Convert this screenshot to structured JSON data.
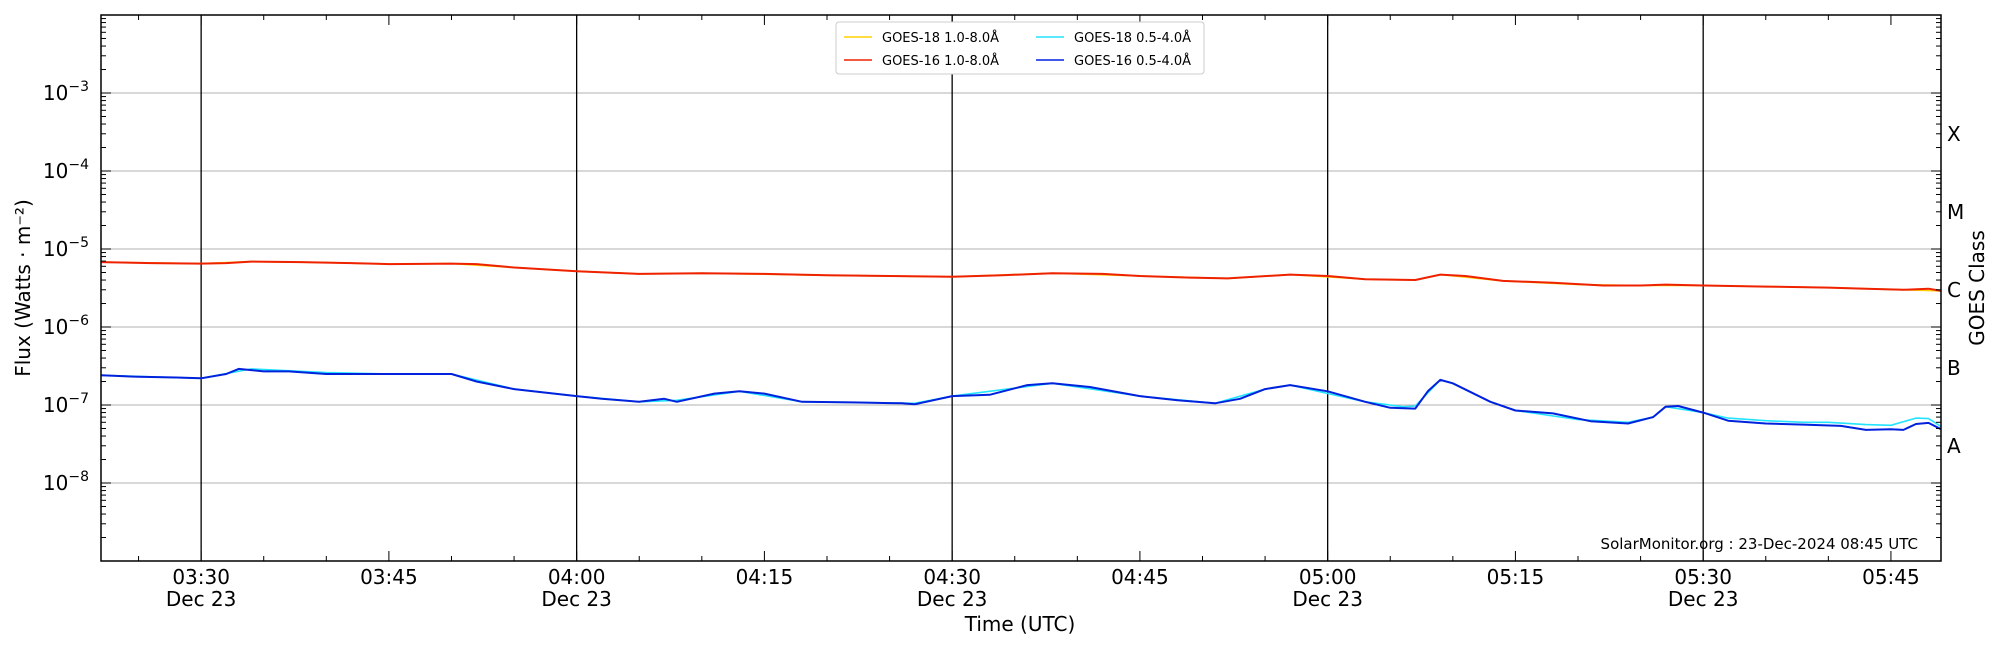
{
  "chart_data": {
    "type": "line",
    "xlabel": "Time (UTC)",
    "ylabel": "Flux (Watts · m⁻²)",
    "right_label": "GOES Class",
    "yscale": "log",
    "ylim": [
      1e-09,
      0.01
    ],
    "xlim": [
      "03:22",
      "05:49"
    ],
    "grid": "horizontal",
    "legend_position": "top-center",
    "credit": "SolarMonitor.org : 23-Dec-2024 08:45 UTC",
    "x_ticks": [
      {
        "time": "03:30",
        "date": "Dec 23",
        "vline": true
      },
      {
        "time": "03:45",
        "date": "",
        "vline": false
      },
      {
        "time": "04:00",
        "date": "Dec 23",
        "vline": true
      },
      {
        "time": "04:15",
        "date": "",
        "vline": false
      },
      {
        "time": "04:30",
        "date": "Dec 23",
        "vline": true
      },
      {
        "time": "04:45",
        "date": "",
        "vline": false
      },
      {
        "time": "05:00",
        "date": "Dec 23",
        "vline": true
      },
      {
        "time": "05:15",
        "date": "",
        "vline": false
      },
      {
        "time": "05:30",
        "date": "Dec 23",
        "vline": true
      },
      {
        "time": "05:45",
        "date": "",
        "vline": false
      }
    ],
    "y_ticks": [
      {
        "value": 1e-08,
        "label": "10",
        "exp": "−8"
      },
      {
        "value": 1e-07,
        "label": "10",
        "exp": "−7"
      },
      {
        "value": 1e-06,
        "label": "10",
        "exp": "−6"
      },
      {
        "value": 1e-05,
        "label": "10",
        "exp": "−5"
      },
      {
        "value": 0.0001,
        "label": "10",
        "exp": "−4"
      },
      {
        "value": 0.001,
        "label": "10",
        "exp": "−3"
      }
    ],
    "goes_classes": [
      {
        "label": "A",
        "value": 3e-08
      },
      {
        "label": "B",
        "value": 3e-07
      },
      {
        "label": "C",
        "value": 3e-06
      },
      {
        "label": "M",
        "value": 3e-05
      },
      {
        "label": "X",
        "value": 0.0003
      }
    ],
    "legend": [
      {
        "name": "GOES-18 1.0-8.0Å",
        "color": "#ffd000"
      },
      {
        "name": "GOES-18 0.5-4.0Å",
        "color": "#22e4ff"
      },
      {
        "name": "GOES-16 1.0-8.0Å",
        "color": "#ee2200"
      },
      {
        "name": "GOES-16 0.5-4.0Å",
        "color": "#0022dd"
      }
    ],
    "series": [
      {
        "name": "GOES-18 1.0-8.0Å",
        "color": "#ffd000",
        "width": 1.6,
        "points": [
          [
            "03:22",
            6.8e-06
          ],
          [
            "03:30",
            6.5e-06
          ],
          [
            "03:34",
            6.9e-06
          ],
          [
            "03:40",
            6.7e-06
          ],
          [
            "03:45",
            6.4e-06
          ],
          [
            "03:50",
            6.5e-06
          ],
          [
            "03:55",
            5.8e-06
          ],
          [
            "04:00",
            5.2e-06
          ],
          [
            "04:05",
            4.8e-06
          ],
          [
            "04:10",
            4.9e-06
          ],
          [
            "04:20",
            4.6e-06
          ],
          [
            "04:30",
            4.4e-06
          ],
          [
            "04:38",
            4.9e-06
          ],
          [
            "04:45",
            4.5e-06
          ],
          [
            "04:52",
            4.2e-06
          ],
          [
            "04:57",
            4.7e-06
          ],
          [
            "05:03",
            4.1e-06
          ],
          [
            "05:07",
            4e-06
          ],
          [
            "05:09",
            4.7e-06
          ],
          [
            "05:14",
            3.9e-06
          ],
          [
            "05:20",
            3.5e-06
          ],
          [
            "05:25",
            3.4e-06
          ],
          [
            "05:30",
            3.4e-06
          ],
          [
            "05:40",
            3.2e-06
          ],
          [
            "05:46",
            3e-06
          ],
          [
            "05:49",
            2.9e-06
          ]
        ]
      },
      {
        "name": "GOES-16 1.0-8.0Å",
        "color": "#ee2200",
        "width": 2.0,
        "points": [
          [
            "03:22",
            6.8e-06
          ],
          [
            "03:26",
            6.6e-06
          ],
          [
            "03:30",
            6.5e-06
          ],
          [
            "03:32",
            6.6e-06
          ],
          [
            "03:34",
            6.9e-06
          ],
          [
            "03:38",
            6.8e-06
          ],
          [
            "03:42",
            6.6e-06
          ],
          [
            "03:45",
            6.4e-06
          ],
          [
            "03:50",
            6.5e-06
          ],
          [
            "03:52",
            6.4e-06
          ],
          [
            "03:55",
            5.8e-06
          ],
          [
            "04:00",
            5.2e-06
          ],
          [
            "04:05",
            4.8e-06
          ],
          [
            "04:10",
            4.9e-06
          ],
          [
            "04:15",
            4.8e-06
          ],
          [
            "04:20",
            4.6e-06
          ],
          [
            "04:25",
            4.5e-06
          ],
          [
            "04:30",
            4.4e-06
          ],
          [
            "04:34",
            4.6e-06
          ],
          [
            "04:38",
            4.9e-06
          ],
          [
            "04:42",
            4.8e-06
          ],
          [
            "04:45",
            4.5e-06
          ],
          [
            "04:49",
            4.3e-06
          ],
          [
            "04:52",
            4.2e-06
          ],
          [
            "04:57",
            4.7e-06
          ],
          [
            "05:00",
            4.5e-06
          ],
          [
            "05:03",
            4.1e-06
          ],
          [
            "05:07",
            4e-06
          ],
          [
            "05:09",
            4.7e-06
          ],
          [
            "05:11",
            4.5e-06
          ],
          [
            "05:14",
            3.9e-06
          ],
          [
            "05:18",
            3.7e-06
          ],
          [
            "05:22",
            3.4e-06
          ],
          [
            "05:25",
            3.4e-06
          ],
          [
            "05:27",
            3.5e-06
          ],
          [
            "05:30",
            3.4e-06
          ],
          [
            "05:35",
            3.3e-06
          ],
          [
            "05:40",
            3.2e-06
          ],
          [
            "05:43",
            3.1e-06
          ],
          [
            "05:46",
            3e-06
          ],
          [
            "05:48",
            3.1e-06
          ],
          [
            "05:49",
            2.9e-06
          ]
        ]
      },
      {
        "name": "GOES-18 0.5-4.0Å",
        "color": "#22e4ff",
        "width": 1.6,
        "points": [
          [
            "03:22",
            2.4e-07
          ],
          [
            "03:30",
            2.2e-07
          ],
          [
            "03:34",
            2.9e-07
          ],
          [
            "03:40",
            2.6e-07
          ],
          [
            "03:45",
            2.5e-07
          ],
          [
            "03:50",
            2.5e-07
          ],
          [
            "03:55",
            1.6e-07
          ],
          [
            "04:00",
            1.3e-07
          ],
          [
            "04:05",
            1.1e-07
          ],
          [
            "04:08",
            1.15e-07
          ],
          [
            "04:13",
            1.5e-07
          ],
          [
            "04:18",
            1.1e-07
          ],
          [
            "04:27",
            1.05e-07
          ],
          [
            "04:30",
            1.3e-07
          ],
          [
            "04:38",
            1.9e-07
          ],
          [
            "04:45",
            1.3e-07
          ],
          [
            "04:51",
            1.05e-07
          ],
          [
            "04:55",
            1.6e-07
          ],
          [
            "04:57",
            1.8e-07
          ],
          [
            "05:03",
            1.1e-07
          ],
          [
            "05:06",
            9.5e-08
          ],
          [
            "05:07",
            9.7e-08
          ],
          [
            "05:09",
            2.1e-07
          ],
          [
            "05:10",
            1.9e-07
          ],
          [
            "05:13",
            1.1e-07
          ],
          [
            "05:15",
            8.5e-08
          ],
          [
            "05:20",
            6.5e-08
          ],
          [
            "05:24",
            6e-08
          ],
          [
            "05:26",
            7e-08
          ],
          [
            "05:27",
            9.5e-08
          ],
          [
            "05:30",
            8e-08
          ],
          [
            "05:32",
            6.8e-08
          ],
          [
            "05:35",
            6.3e-08
          ],
          [
            "05:38",
            6e-08
          ],
          [
            "05:40",
            6e-08
          ],
          [
            "05:43",
            5.6e-08
          ],
          [
            "05:45",
            5.5e-08
          ],
          [
            "05:47",
            6.8e-08
          ],
          [
            "05:48",
            6.7e-08
          ],
          [
            "05:49",
            5.3e-08
          ]
        ]
      },
      {
        "name": "GOES-16 0.5-4.0Å",
        "color": "#0022dd",
        "width": 2.0,
        "points": [
          [
            "03:22",
            2.4e-07
          ],
          [
            "03:25",
            2.3e-07
          ],
          [
            "03:28",
            2.25e-07
          ],
          [
            "03:30",
            2.2e-07
          ],
          [
            "03:32",
            2.5e-07
          ],
          [
            "03:33",
            2.9e-07
          ],
          [
            "03:35",
            2.7e-07
          ],
          [
            "03:37",
            2.7e-07
          ],
          [
            "03:40",
            2.5e-07
          ],
          [
            "03:45",
            2.5e-07
          ],
          [
            "03:50",
            2.5e-07
          ],
          [
            "03:52",
            2e-07
          ],
          [
            "03:55",
            1.6e-07
          ],
          [
            "04:00",
            1.3e-07
          ],
          [
            "04:02",
            1.2e-07
          ],
          [
            "04:05",
            1.1e-07
          ],
          [
            "04:07",
            1.2e-07
          ],
          [
            "04:08",
            1.1e-07
          ],
          [
            "04:11",
            1.4e-07
          ],
          [
            "04:13",
            1.5e-07
          ],
          [
            "04:15",
            1.4e-07
          ],
          [
            "04:18",
            1.1e-07
          ],
          [
            "04:22",
            1.08e-07
          ],
          [
            "04:26",
            1.05e-07
          ],
          [
            "04:27",
            1.02e-07
          ],
          [
            "04:30",
            1.3e-07
          ],
          [
            "04:33",
            1.35e-07
          ],
          [
            "04:36",
            1.8e-07
          ],
          [
            "04:38",
            1.9e-07
          ],
          [
            "04:41",
            1.7e-07
          ],
          [
            "04:45",
            1.3e-07
          ],
          [
            "04:48",
            1.15e-07
          ],
          [
            "04:51",
            1.05e-07
          ],
          [
            "04:53",
            1.2e-07
          ],
          [
            "04:55",
            1.6e-07
          ],
          [
            "04:57",
            1.8e-07
          ],
          [
            "05:00",
            1.5e-07
          ],
          [
            "05:03",
            1.1e-07
          ],
          [
            "05:05",
            9.2e-08
          ],
          [
            "05:07",
            9e-08
          ],
          [
            "05:08",
            1.5e-07
          ],
          [
            "05:09",
            2.1e-07
          ],
          [
            "05:10",
            1.9e-07
          ],
          [
            "05:13",
            1.1e-07
          ],
          [
            "05:15",
            8.5e-08
          ],
          [
            "05:18",
            7.8e-08
          ],
          [
            "05:21",
            6.2e-08
          ],
          [
            "05:24",
            5.8e-08
          ],
          [
            "05:26",
            7e-08
          ],
          [
            "05:27",
            9.5e-08
          ],
          [
            "05:28",
            9.7e-08
          ],
          [
            "05:30",
            8e-08
          ],
          [
            "05:32",
            6.3e-08
          ],
          [
            "05:35",
            5.8e-08
          ],
          [
            "05:38",
            5.6e-08
          ],
          [
            "05:41",
            5.4e-08
          ],
          [
            "05:43",
            4.8e-08
          ],
          [
            "05:45",
            4.9e-08
          ],
          [
            "05:46",
            4.8e-08
          ],
          [
            "05:47",
            5.7e-08
          ],
          [
            "05:48",
            5.9e-08
          ],
          [
            "05:49",
            4.9e-08
          ]
        ]
      }
    ]
  }
}
